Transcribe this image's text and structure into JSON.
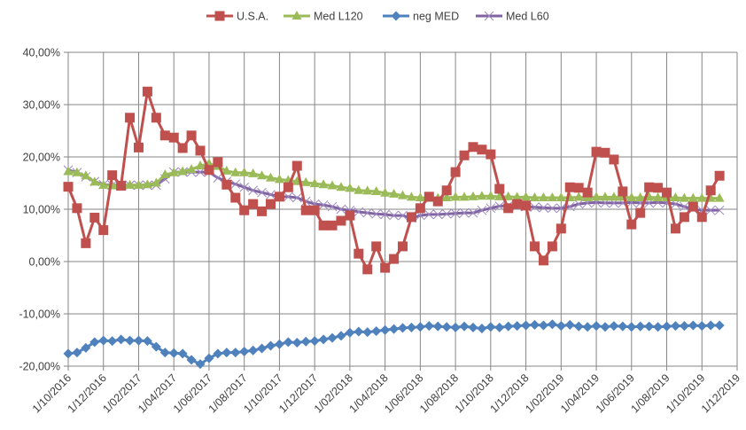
{
  "chart_data": {
    "type": "line",
    "title": "",
    "xlabel": "",
    "ylabel": "",
    "ylim": [
      -0.2,
      0.4
    ],
    "yticks": [
      -0.2,
      -0.1,
      0.0,
      0.1,
      0.2,
      0.3,
      0.4
    ],
    "ytick_labels": [
      "-20,00%",
      "-10,00%",
      "0,00%",
      "10,00%",
      "20,00%",
      "30,00%",
      "40,00%"
    ],
    "xtick_labels": [
      "1/10/2016",
      "1/12/2016",
      "1/02/2017",
      "1/04/2017",
      "1/06/2017",
      "1/08/2017",
      "1/10/2017",
      "1/12/2017",
      "1/02/2018",
      "1/04/2018",
      "1/06/2018",
      "1/08/2018",
      "1/10/2018",
      "1/12/2018",
      "1/02/2019",
      "1/04/2019",
      "1/06/2019",
      "1/08/2019",
      "1/10/2019",
      "1/12/2019"
    ],
    "x_range_months": [
      0,
      38
    ],
    "x_point_step_months": 0.5,
    "grid": true,
    "legend_position": "top",
    "series": [
      {
        "name": "U.S.A.",
        "color": "#C0504D",
        "marker": "square",
        "values": [
          14.3,
          10.2,
          3.5,
          8.4,
          6.0,
          16.5,
          14.5,
          27.5,
          21.8,
          32.5,
          27.5,
          24.1,
          23.7,
          21.7,
          24.1,
          21.2,
          17.5,
          19.0,
          14.7,
          12.2,
          9.8,
          11.0,
          9.6,
          11.0,
          12.4,
          14.2,
          18.3,
          9.8,
          9.8,
          6.9,
          6.9,
          7.8,
          8.8,
          1.5,
          -1.5,
          2.9,
          -1.2,
          0.5,
          2.9,
          8.5,
          10.2,
          12.4,
          11.5,
          13.6,
          17.1,
          20.3,
          21.9,
          21.4,
          20.5,
          13.9,
          10.2,
          11.0,
          10.7,
          2.9,
          0.2,
          2.9,
          6.3,
          14.2,
          14.1,
          13.2,
          21.0,
          20.8,
          19.5,
          13.4,
          7.1,
          9.3,
          14.2,
          14.1,
          13.2,
          6.3,
          8.5,
          10.5,
          8.5,
          13.6,
          16.4
        ]
      },
      {
        "name": "Med L120",
        "color": "#9BBB59",
        "marker": "triangle",
        "values": [
          17.2,
          17.0,
          16.4,
          15.2,
          14.6,
          14.5,
          14.5,
          14.6,
          14.6,
          14.7,
          15.0,
          16.6,
          17.0,
          17.2,
          17.6,
          18.3,
          18.7,
          18.2,
          17.3,
          17.0,
          17.0,
          16.8,
          16.4,
          16.0,
          15.7,
          15.5,
          15.3,
          15.1,
          14.9,
          14.7,
          14.5,
          14.2,
          14.0,
          13.6,
          13.5,
          13.4,
          13.1,
          12.9,
          12.6,
          12.3,
          12.2,
          12.1,
          12.1,
          12.2,
          12.3,
          12.3,
          12.4,
          12.5,
          12.5,
          12.4,
          12.4,
          12.3,
          12.3,
          12.2,
          12.2,
          12.2,
          12.2,
          12.2,
          12.3,
          12.2,
          12.3,
          12.3,
          12.3,
          12.3,
          12.2,
          12.2,
          12.3,
          12.2,
          12.2,
          12.2,
          12.1,
          12.1,
          12.1,
          12.1,
          12.1
        ]
      },
      {
        "name": "neg MED",
        "color": "#4F81BD",
        "marker": "diamond",
        "values": [
          -17.6,
          -17.4,
          -16.5,
          -15.4,
          -15.1,
          -15.2,
          -14.9,
          -15.1,
          -15.1,
          -15.2,
          -16.3,
          -17.4,
          -17.5,
          -17.6,
          -18.8,
          -19.6,
          -18.5,
          -17.6,
          -17.4,
          -17.4,
          -17.2,
          -17.0,
          -16.6,
          -16.1,
          -15.8,
          -15.4,
          -15.5,
          -15.3,
          -15.2,
          -14.9,
          -14.6,
          -14.2,
          -13.6,
          -13.4,
          -13.5,
          -13.3,
          -13.1,
          -12.9,
          -12.7,
          -12.6,
          -12.5,
          -12.3,
          -12.4,
          -12.5,
          -12.6,
          -12.4,
          -12.6,
          -12.8,
          -12.5,
          -12.6,
          -12.4,
          -12.3,
          -12.2,
          -12.1,
          -12.2,
          -12.0,
          -12.3,
          -12.1,
          -12.4,
          -12.5,
          -12.3,
          -12.5,
          -12.3,
          -12.4,
          -12.5,
          -12.4,
          -12.4,
          -12.5,
          -12.4,
          -12.3,
          -12.3,
          -12.2,
          -12.3,
          -12.2,
          -12.2
        ]
      },
      {
        "name": "Med L60",
        "color": "#8064A2",
        "marker": "x",
        "values": [
          17.5,
          17.0,
          16.2,
          15.3,
          14.7,
          14.6,
          14.6,
          14.6,
          14.6,
          14.6,
          14.6,
          15.8,
          17.1,
          17.1,
          17.1,
          17.1,
          17.1,
          16.0,
          15.3,
          14.8,
          14.2,
          13.6,
          13.2,
          12.8,
          12.4,
          12.4,
          12.2,
          11.5,
          11.0,
          10.8,
          10.5,
          10.0,
          9.8,
          9.5,
          9.3,
          9.1,
          9.0,
          8.8,
          8.8,
          8.3,
          8.8,
          9.0,
          9.0,
          9.1,
          9.2,
          9.3,
          9.3,
          9.8,
          10.2,
          10.6,
          10.7,
          10.6,
          10.5,
          10.4,
          10.3,
          10.2,
          10.2,
          10.5,
          11.0,
          11.2,
          11.3,
          11.2,
          11.2,
          11.2,
          11.3,
          11.2,
          11.2,
          11.3,
          11.2,
          11.0,
          10.5,
          10.0,
          9.8,
          9.8,
          9.8
        ]
      }
    ]
  }
}
